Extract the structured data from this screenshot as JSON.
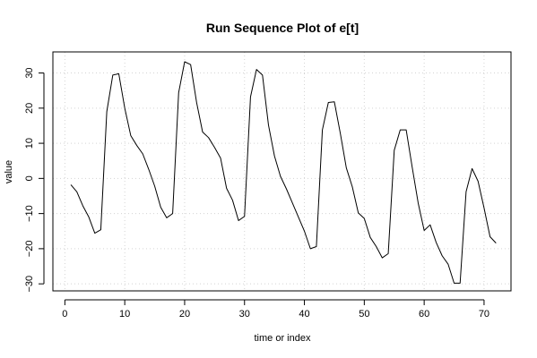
{
  "chart_data": {
    "type": "line",
    "title": "Run Sequence Plot of e[t]",
    "xlabel": "time or index",
    "ylabel": "value",
    "xlim": [
      -2,
      74.5
    ],
    "ylim": [
      -32,
      36
    ],
    "x_ticks": [
      0,
      10,
      20,
      30,
      40,
      50,
      60,
      70
    ],
    "y_ticks": [
      -30,
      -20,
      -10,
      0,
      10,
      20,
      30
    ],
    "grid": true,
    "legend": "none",
    "line_color": "#000000",
    "grid_color": "#d3d3d3",
    "series": [
      {
        "x": [
          1,
          2,
          3,
          4,
          5,
          6,
          7,
          8,
          9,
          10,
          11,
          12,
          13,
          14,
          15,
          16,
          17,
          18,
          19,
          20,
          21,
          22,
          23,
          24,
          25,
          26,
          27,
          28,
          29,
          30,
          31,
          32,
          33,
          34,
          35,
          36,
          37,
          38,
          39,
          40,
          41,
          42,
          43,
          44,
          45,
          46,
          47,
          48,
          49,
          50,
          51,
          52,
          53,
          54,
          55,
          56,
          57,
          58,
          59,
          60,
          61,
          62,
          63,
          64,
          65,
          66,
          67,
          68,
          69,
          70,
          71,
          72
        ],
        "values": [
          -1.8,
          -3.8,
          -7.8,
          -11,
          -15.6,
          -14.6,
          19,
          29.4,
          29.8,
          20,
          12.2,
          9.4,
          7,
          2.6,
          -2.2,
          -8.2,
          -11.2,
          -10,
          24.4,
          33.2,
          32.4,
          21.6,
          13.2,
          11.6,
          8.8,
          5.8,
          -2.8,
          -6.2,
          -12,
          -10.8,
          23.2,
          31,
          29.4,
          15.2,
          6.4,
          0.6,
          -3,
          -7,
          -11,
          -15,
          -20,
          -19.4,
          13.8,
          21.6,
          21.8,
          12.8,
          3,
          -2.4,
          -9.8,
          -11.4,
          -16.8,
          -19.4,
          -22.6,
          -21.4,
          8,
          13.8,
          13.8,
          3.2,
          -7,
          -14.8,
          -13.2,
          -18.2,
          -22,
          -24.4,
          -29.8,
          -29.8,
          -3.8,
          2.8,
          -0.8,
          -8.4,
          -16.6,
          -18.4
        ]
      }
    ]
  }
}
